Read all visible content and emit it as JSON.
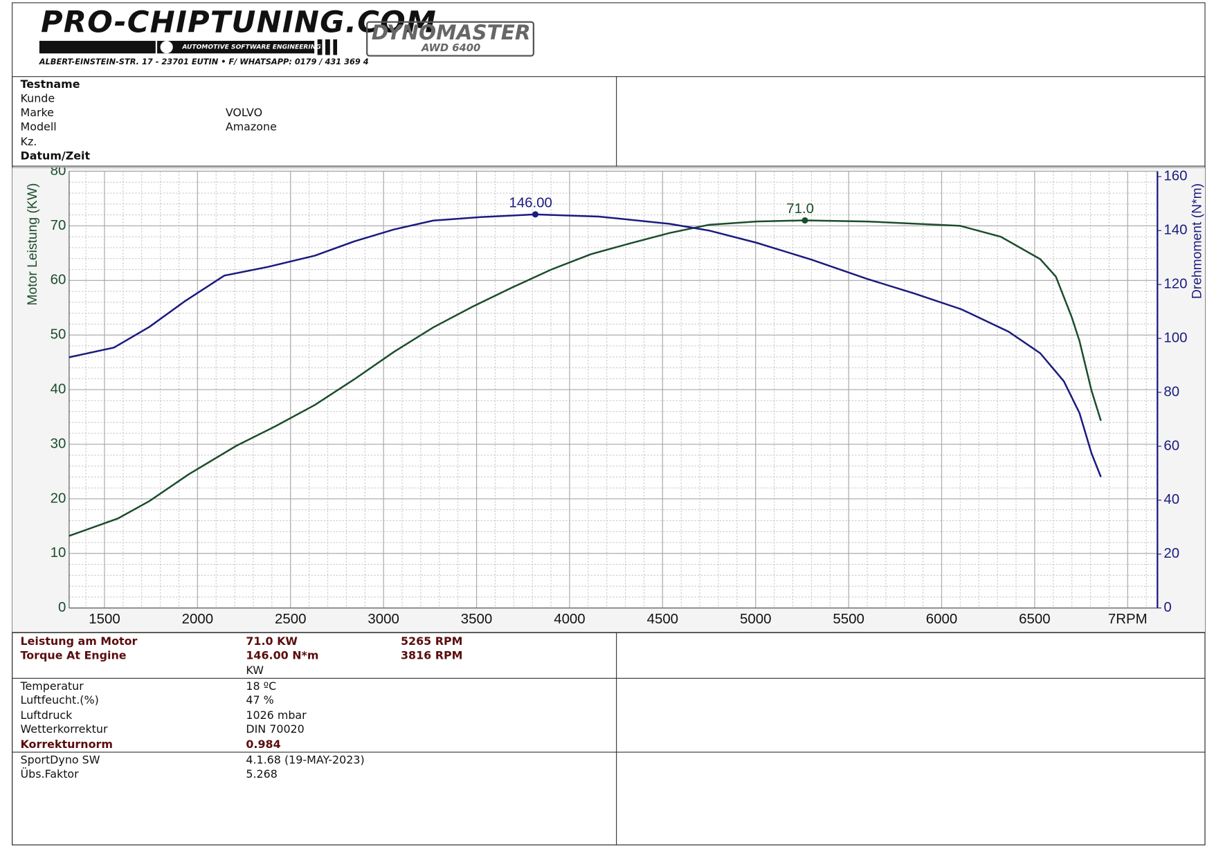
{
  "header": {
    "logo": "PRO-CHIPTUNING.COM",
    "tagline": "AUTOMOTIVE SOFTWARE ENGINEERING",
    "address": "ALBERT-EINSTEIN-STR. 17 - 23701 EUTIN • F/ WHATSAPP: 0179 / 431 369 4",
    "dyno": "DYNOMASTER",
    "dyno_model": "AWD 6400"
  },
  "info": {
    "rows": [
      {
        "label": "Testname"
      },
      {
        "label": "Kunde"
      },
      {
        "label": "Marke",
        "value": "VOLVO"
      },
      {
        "label": "Modell",
        "value": "Amazone"
      },
      {
        "label": "Kz."
      },
      {
        "label": "Datum/Zeit"
      }
    ]
  },
  "chart_data": {
    "type": "line",
    "ylabel": "Motor Leistung (KW)",
    "y2label": "Drehmoment (N*m)",
    "xlim": [
      1310,
      7160
    ],
    "xticks": [
      1500,
      2000,
      2500,
      3000,
      3500,
      4000,
      4500,
      5000,
      5500,
      6000,
      6500,
      {
        "value": 7000,
        "label": "7RPM"
      }
    ],
    "ylim": [
      0,
      80
    ],
    "yticks": [
      0,
      10,
      20,
      30,
      40,
      50,
      60,
      70,
      80
    ],
    "y2lim": [
      0,
      162
    ],
    "y2ticks": [
      0,
      20,
      40,
      60,
      80,
      100,
      120,
      140,
      160
    ],
    "grid": true,
    "minor_grid": true,
    "series": [
      {
        "name": "Leistung",
        "color": "#1b4d2b",
        "x": [
          1309,
          1572,
          1742,
          1953,
          2208,
          2419,
          2631,
          2843,
          3055,
          3267,
          3479,
          3691,
          3902,
          4114,
          4326,
          4538,
          4750,
          5004,
          5265,
          5600,
          6100,
          6318,
          6530,
          6614,
          6699,
          6741,
          6805,
          6856
        ],
        "values": [
          13.2,
          16.4,
          19.6,
          24.5,
          29.7,
          33.3,
          37.2,
          41.9,
          46.9,
          51.4,
          55.2,
          58.7,
          62.0,
          64.8,
          66.8,
          68.7,
          70.2,
          70.8,
          71.0,
          70.8,
          70.0,
          68.0,
          63.9,
          60.7,
          53.3,
          48.9,
          39.9,
          34.3
        ],
        "peak": {
          "x": 5265,
          "value": 71.0,
          "value_label": "71.0"
        }
      },
      {
        "name": "Drehmoment",
        "color": "#1a1a80",
        "axis": "y2",
        "x": [
          1309,
          1551,
          1742,
          1932,
          2144,
          2377,
          2631,
          2843,
          3055,
          3267,
          3521,
          3816,
          4157,
          4538,
          4750,
          5004,
          5301,
          5598,
          5852,
          6106,
          6360,
          6530,
          6657,
          6741,
          6805,
          6856
        ],
        "values": [
          93.0,
          96.6,
          104.3,
          113.8,
          123.3,
          126.5,
          130.7,
          136.0,
          140.4,
          143.7,
          145.0,
          146.0,
          145.2,
          142.5,
          140.0,
          135.5,
          129.2,
          122.1,
          116.7,
          110.8,
          102.5,
          94.5,
          84.1,
          72.3,
          57.5,
          48.6
        ],
        "peak": {
          "x": 3816,
          "value": 146.0,
          "value_label": "146.00"
        }
      }
    ]
  },
  "results": {
    "rows": [
      {
        "label": "Leistung am Motor",
        "value": "71.0 KW",
        "rpm": "5265 RPM"
      },
      {
        "label": "Torque At Engine",
        "value": "146.00 N*m",
        "rpm": "3816 RPM"
      },
      {
        "value": "KW"
      }
    ]
  },
  "conditions": {
    "rows": [
      {
        "label": "Temperatur",
        "value": "18 ºC"
      },
      {
        "label": "Luftfeucht.(%)",
        "value": "47 %"
      },
      {
        "label": "Luftdruck",
        "value": "1026 mbar"
      },
      {
        "label": "Wetterkorrektur",
        "value": "DIN 70020"
      },
      {
        "label": "Korrekturnorm",
        "value": "0.984"
      }
    ]
  },
  "software": {
    "rows": [
      {
        "label": "SportDyno SW",
        "value": "4.1.68 (19-MAY-2023)"
      },
      {
        "label": "Übs.Faktor",
        "value": "5.268"
      }
    ]
  }
}
